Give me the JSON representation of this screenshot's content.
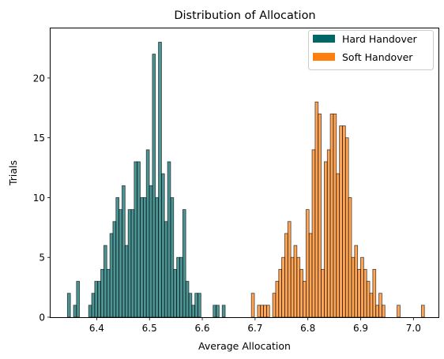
{
  "chart_data": {
    "type": "histogram",
    "title": "Distribution of Allocation",
    "xlabel": "Average Allocation",
    "ylabel": "Trials",
    "xlim": [
      6.3126,
      7.0474
    ],
    "ylim": [
      0,
      24.15
    ],
    "xticks": [
      6.4,
      6.5,
      6.6,
      6.7,
      6.8,
      6.9,
      7.0
    ],
    "xtick_labels": [
      "6.4",
      "6.5",
      "6.6",
      "6.7",
      "6.8",
      "6.9",
      "7.0"
    ],
    "yticks": [
      0,
      5,
      10,
      15,
      20
    ],
    "ytick_labels": [
      "0",
      "5",
      "10",
      "15",
      "20"
    ],
    "legend_position": "top-right",
    "series": [
      {
        "name": "Hard Handover",
        "color": "#006666",
        "alpha": 0.7,
        "bin_width": 0.00575,
        "bins": [
          [
            6.3445,
            2
          ],
          [
            6.3502,
            0
          ],
          [
            6.356,
            1
          ],
          [
            6.3617,
            3
          ],
          [
            6.3675,
            0
          ],
          [
            6.3732,
            0
          ],
          [
            6.379,
            0
          ],
          [
            6.3847,
            1
          ],
          [
            6.3905,
            2
          ],
          [
            6.3962,
            3
          ],
          [
            6.402,
            3
          ],
          [
            6.4077,
            4
          ],
          [
            6.4135,
            6
          ],
          [
            6.4192,
            4
          ],
          [
            6.425,
            7
          ],
          [
            6.4307,
            8
          ],
          [
            6.4365,
            10
          ],
          [
            6.4422,
            9
          ],
          [
            6.448,
            11
          ],
          [
            6.4537,
            6
          ],
          [
            6.4595,
            9
          ],
          [
            6.4652,
            9
          ],
          [
            6.471,
            13
          ],
          [
            6.4767,
            13
          ],
          [
            6.4825,
            10
          ],
          [
            6.4882,
            10
          ],
          [
            6.494,
            14
          ],
          [
            6.4997,
            11
          ],
          [
            6.5055,
            22
          ],
          [
            6.5112,
            10
          ],
          [
            6.517,
            23
          ],
          [
            6.5227,
            12
          ],
          [
            6.5285,
            8
          ],
          [
            6.5342,
            13
          ],
          [
            6.54,
            10
          ],
          [
            6.5457,
            4
          ],
          [
            6.5515,
            5
          ],
          [
            6.5572,
            5
          ],
          [
            6.563,
            9
          ],
          [
            6.5687,
            3
          ],
          [
            6.5745,
            2
          ],
          [
            6.5802,
            1
          ],
          [
            6.586,
            2
          ],
          [
            6.5917,
            2
          ],
          [
            6.5975,
            0
          ],
          [
            6.6032,
            0
          ],
          [
            6.609,
            0
          ],
          [
            6.6147,
            0
          ],
          [
            6.6205,
            1
          ],
          [
            6.6262,
            1
          ],
          [
            6.632,
            0
          ],
          [
            6.6377,
            1
          ]
        ]
      },
      {
        "name": "Soft Handover",
        "color": "#ff7f0e",
        "alpha": 0.7,
        "bin_width": 0.00575,
        "bins": [
          [
            6.693,
            2
          ],
          [
            6.6988,
            0
          ],
          [
            6.7045,
            1
          ],
          [
            6.7103,
            1
          ],
          [
            6.716,
            1
          ],
          [
            6.7218,
            1
          ],
          [
            6.7275,
            0
          ],
          [
            6.7333,
            2
          ],
          [
            6.739,
            3
          ],
          [
            6.7448,
            4
          ],
          [
            6.7505,
            5
          ],
          [
            6.7563,
            7
          ],
          [
            6.762,
            8
          ],
          [
            6.7678,
            5
          ],
          [
            6.7735,
            6
          ],
          [
            6.7793,
            5
          ],
          [
            6.785,
            4
          ],
          [
            6.7908,
            3
          ],
          [
            6.7965,
            9
          ],
          [
            6.8023,
            7
          ],
          [
            6.808,
            14
          ],
          [
            6.8138,
            18
          ],
          [
            6.8195,
            17
          ],
          [
            6.8253,
            4
          ],
          [
            6.831,
            13
          ],
          [
            6.8368,
            14
          ],
          [
            6.8425,
            17
          ],
          [
            6.8483,
            17
          ],
          [
            6.854,
            12
          ],
          [
            6.8598,
            16
          ],
          [
            6.8655,
            16
          ],
          [
            6.8713,
            15
          ],
          [
            6.877,
            10
          ],
          [
            6.8828,
            5
          ],
          [
            6.8885,
            6
          ],
          [
            6.8943,
            4
          ],
          [
            6.9,
            5
          ],
          [
            6.9058,
            4
          ],
          [
            6.9115,
            3
          ],
          [
            6.9173,
            2
          ],
          [
            6.923,
            4
          ],
          [
            6.9288,
            1
          ],
          [
            6.9345,
            2
          ],
          [
            6.9403,
            1
          ],
          [
            6.946,
            0
          ],
          [
            6.9518,
            0
          ],
          [
            6.9575,
            0
          ],
          [
            6.9633,
            0
          ],
          [
            6.969,
            1
          ],
          [
            6.9748,
            0
          ],
          [
            6.9805,
            0
          ],
          [
            6.9863,
            0
          ],
          [
            6.992,
            0
          ],
          [
            6.9978,
            0
          ],
          [
            7.0035,
            0
          ],
          [
            7.0093,
            0
          ],
          [
            7.015,
            1
          ]
        ]
      }
    ]
  }
}
